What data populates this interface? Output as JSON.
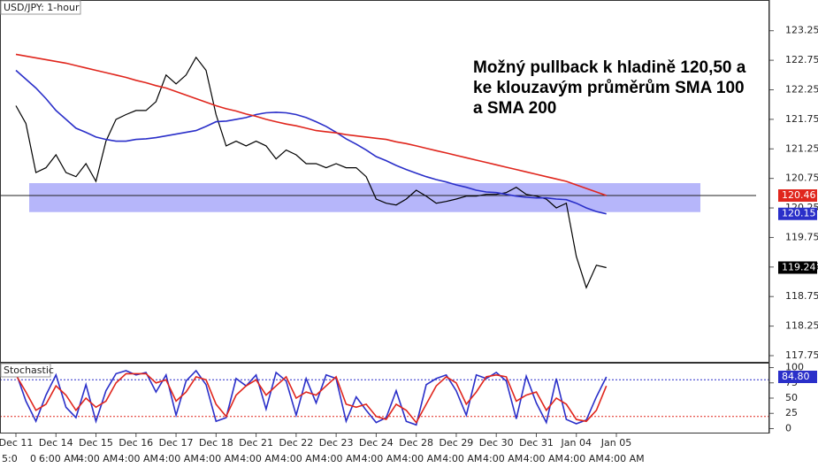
{
  "chart_data": [
    {
      "type": "line",
      "title": "USD/JPY: 1-hour",
      "annotation": [
        "Možný pullback k hladině 120,50 a",
        "ke klouzavým průměrům SMA 100",
        "a SMA 200"
      ],
      "ylim": [
        117.63,
        123.77
      ],
      "yticks": [
        117.75,
        118.25,
        118.75,
        119.25,
        119.75,
        120.25,
        120.75,
        121.25,
        121.75,
        122.25,
        122.75,
        123.25
      ],
      "level": 120.46,
      "zone": [
        120.18,
        120.67
      ],
      "series": [
        {
          "color": "#000000",
          "tag": true,
          "values": [
            121.98,
            121.68,
            120.85,
            120.93,
            121.15,
            120.85,
            120.78,
            121.0,
            120.7,
            121.38,
            121.75,
            121.83,
            121.9,
            121.9,
            122.05,
            122.5,
            122.35,
            122.5,
            122.8,
            122.58,
            121.83,
            121.3,
            121.38,
            121.3,
            121.38,
            121.3,
            121.08,
            121.23,
            121.15,
            121.0,
            121.0,
            120.93,
            121.0,
            120.93,
            120.93,
            120.78,
            120.4,
            120.33,
            120.3,
            120.4,
            120.55,
            120.45,
            120.33,
            120.36,
            120.4,
            120.45,
            120.45,
            120.48,
            120.48,
            120.51,
            120.6,
            120.48,
            120.45,
            120.4,
            120.25,
            120.33,
            119.43,
            118.9,
            119.28,
            119.24,
            null
          ]
        },
        {
          "color": "#2a2fc9",
          "tag": true,
          "values": [
            122.58,
            122.43,
            122.28,
            122.1,
            121.9,
            121.75,
            121.6,
            121.53,
            121.45,
            121.41,
            121.38,
            121.38,
            121.41,
            121.42,
            121.44,
            121.47,
            121.5,
            121.53,
            121.56,
            121.63,
            121.71,
            121.72,
            121.75,
            121.78,
            121.83,
            121.86,
            121.87,
            121.86,
            121.83,
            121.78,
            121.71,
            121.63,
            121.53,
            121.42,
            121.33,
            121.23,
            121.12,
            121.05,
            120.97,
            120.9,
            120.84,
            120.78,
            120.73,
            120.69,
            120.64,
            120.6,
            120.55,
            120.52,
            120.51,
            120.48,
            120.45,
            120.43,
            120.42,
            120.42,
            120.4,
            120.39,
            120.33,
            120.25,
            120.19,
            120.15,
            null
          ]
        },
        {
          "color": "#e0261d",
          "tag": true,
          "values": [
            122.85,
            122.82,
            122.79,
            122.76,
            122.73,
            122.7,
            122.66,
            122.62,
            122.58,
            122.54,
            122.5,
            122.46,
            122.41,
            122.37,
            122.32,
            122.28,
            122.22,
            122.16,
            122.1,
            122.04,
            121.98,
            121.93,
            121.89,
            121.84,
            121.8,
            121.75,
            121.71,
            121.67,
            121.64,
            121.6,
            121.56,
            121.54,
            121.52,
            121.49,
            121.47,
            121.45,
            121.43,
            121.41,
            121.37,
            121.34,
            121.3,
            121.26,
            121.22,
            121.18,
            121.14,
            121.1,
            121.06,
            121.02,
            120.98,
            120.94,
            120.9,
            120.86,
            120.82,
            120.78,
            120.74,
            120.7,
            120.64,
            120.58,
            120.52,
            120.46,
            null
          ]
        }
      ]
    },
    {
      "type": "line",
      "title": "Stochastic",
      "ylim": [
        -8,
        108
      ],
      "yticks": [
        0,
        25,
        50,
        75,
        100
      ],
      "levels": [
        80,
        20
      ],
      "categories": [
        "Dec 11",
        null,
        null,
        null,
        "Dec 14",
        null,
        null,
        null,
        "Dec 15",
        null,
        null,
        null,
        "Dec 16",
        null,
        null,
        null,
        "Dec 17",
        null,
        null,
        null,
        "Dec 18",
        null,
        null,
        null,
        "Dec 21",
        null,
        null,
        null,
        "Dec 22",
        null,
        null,
        null,
        "Dec 23",
        null,
        null,
        null,
        "Dec 24",
        null,
        null,
        null,
        "Dec 28",
        null,
        null,
        null,
        "Dec 29",
        null,
        null,
        null,
        "Dec 30",
        null,
        null,
        null,
        "Dec 31",
        null,
        null,
        null,
        "Jan 04",
        null,
        null,
        null,
        "Jan 05"
      ],
      "time_labels": [
        "5:0",
        "0",
        "6:00 AM",
        "4:00 AM",
        "4:00 AM",
        "4:00 AM",
        "4:00 AM",
        "4:00 AM",
        "4:00 AM",
        "4:00 AM",
        "4:00 AM",
        "4:00 AM",
        "4:00 AM",
        "4:00 AM",
        "4:00 AM",
        "4:00 AM",
        "4:00 AM"
      ],
      "series": [
        {
          "color": "#2a2fc9",
          "tag": true,
          "values": [
            92,
            45,
            12,
            55,
            88,
            35,
            18,
            72,
            12,
            62,
            90,
            95,
            88,
            92,
            60,
            88,
            22,
            78,
            95,
            72,
            12,
            18,
            82,
            70,
            88,
            32,
            92,
            78,
            22,
            82,
            42,
            88,
            82,
            12,
            52,
            30,
            10,
            18,
            62,
            12,
            6,
            72,
            82,
            88,
            62,
            22,
            88,
            82,
            92,
            78,
            16,
            86,
            42,
            10,
            82,
            15,
            8,
            14,
            52,
            84.8,
            null
          ],
          "value_labels": [
            null,
            null,
            null,
            null,
            null,
            null,
            null,
            null,
            null,
            null,
            null,
            null,
            null,
            null,
            null,
            null,
            null,
            null,
            null,
            null,
            null,
            null,
            null,
            null,
            null,
            null,
            null,
            null,
            null,
            null,
            null,
            null,
            null,
            null,
            null,
            null,
            null,
            null,
            null,
            null,
            null,
            null,
            null,
            null,
            null,
            null,
            null,
            null,
            null,
            null,
            null,
            null,
            null,
            null,
            null,
            null,
            null,
            null,
            null,
            "84.80",
            null
          ]
        },
        {
          "color": "#e0261d",
          "values": [
            88,
            60,
            30,
            40,
            70,
            55,
            30,
            50,
            35,
            45,
            75,
            90,
            90,
            90,
            75,
            80,
            45,
            60,
            85,
            80,
            40,
            20,
            55,
            70,
            80,
            55,
            70,
            85,
            50,
            60,
            55,
            70,
            85,
            40,
            35,
            40,
            20,
            15,
            40,
            30,
            10,
            40,
            70,
            85,
            75,
            40,
            60,
            85,
            88,
            85,
            45,
            55,
            60,
            30,
            50,
            40,
            15,
            12,
            30,
            70,
            null
          ]
        }
      ]
    }
  ]
}
